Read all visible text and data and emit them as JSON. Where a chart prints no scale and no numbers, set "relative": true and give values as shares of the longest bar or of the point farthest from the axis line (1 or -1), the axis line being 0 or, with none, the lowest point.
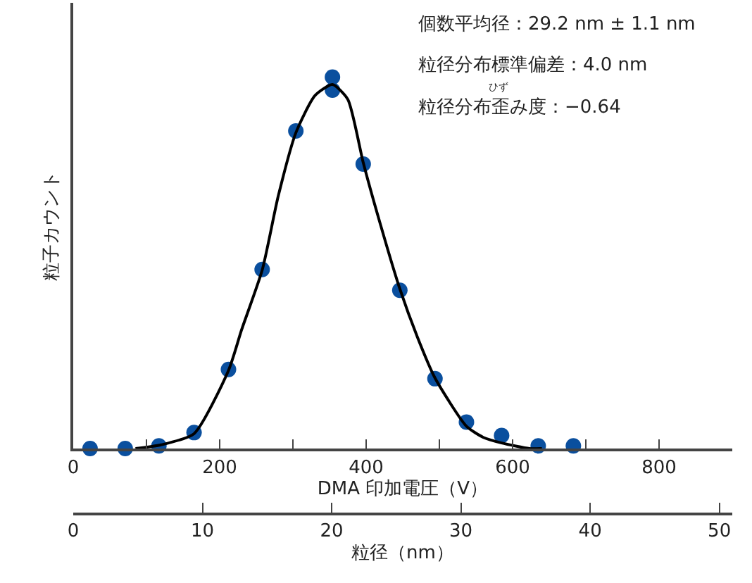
{
  "chart_data": {
    "type": "scatter",
    "relative": true,
    "xlabel": "DMA 印加電圧（V）",
    "ylabel": "粒子カウント",
    "x2label": "粒径（nm）",
    "xlim": [
      0,
      900
    ],
    "xticks": [
      0,
      {
        "value": 100,
        "label": null
      },
      200,
      {
        "value": 300,
        "label": null
      },
      400,
      {
        "value": 500,
        "label": null
      },
      600,
      {
        "value": 700,
        "label": null
      },
      800
    ],
    "x2lim": [
      0,
      51
    ],
    "x2ticks": [
      0,
      10,
      20,
      30,
      40,
      50
    ],
    "tick_labels": "x",
    "series": [
      {
        "marker": "circle",
        "color": "#0a4f9e",
        "x": [
          23,
          71,
          117,
          165,
          212,
          258,
          304,
          354,
          354,
          396,
          446,
          494,
          537,
          585,
          635,
          683
        ],
        "values": [
          0,
          0,
          0.007,
          0.043,
          0.213,
          0.482,
          0.855,
          1,
          0.965,
          0.766,
          0.426,
          0.188,
          0.071,
          0.035,
          0.007,
          0.007
        ]
      },
      {
        "type": "line",
        "marker": "none",
        "line_style": "solid",
        "color": "#000000",
        "x": [
          85,
          120,
          165,
          212,
          230,
          258,
          280,
          304,
          330,
          354,
          375,
          396,
          420,
          446,
          470,
          494,
          537,
          560,
          585,
          623,
          640
        ],
        "values": [
          0,
          0.01,
          0.04,
          0.21,
          0.32,
          0.48,
          0.68,
          0.85,
          0.95,
          0.98,
          0.94,
          0.77,
          0.6,
          0.43,
          0.3,
          0.19,
          0.06,
          0.03,
          0.015,
          0,
          0
        ]
      }
    ],
    "annotations": [
      "個数平均径：29.2 nm ± 1.1 nm",
      "粒径分布標準偏差：4.0 nm",
      "粒径分布歪み度：−0.64",
      "ひず"
    ]
  }
}
